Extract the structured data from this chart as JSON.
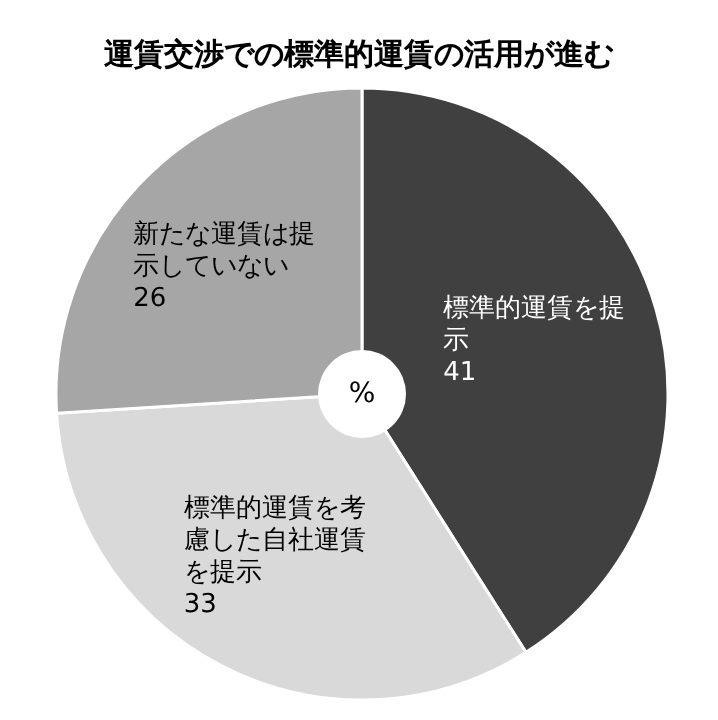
{
  "chart_data": {
    "type": "pie",
    "title": "運賃交渉での標準的運賃の活用が進む",
    "categories": [
      "標準的運賃を提示",
      "標準的運賃を考慮した自社運賃を提示",
      "新たな運賃は提示していない"
    ],
    "values": [
      41,
      33,
      26
    ],
    "colors": [
      "#404040",
      "#d9d9d9",
      "#a6a6a6"
    ],
    "data_labels": true,
    "annotations": [
      "%"
    ]
  }
}
